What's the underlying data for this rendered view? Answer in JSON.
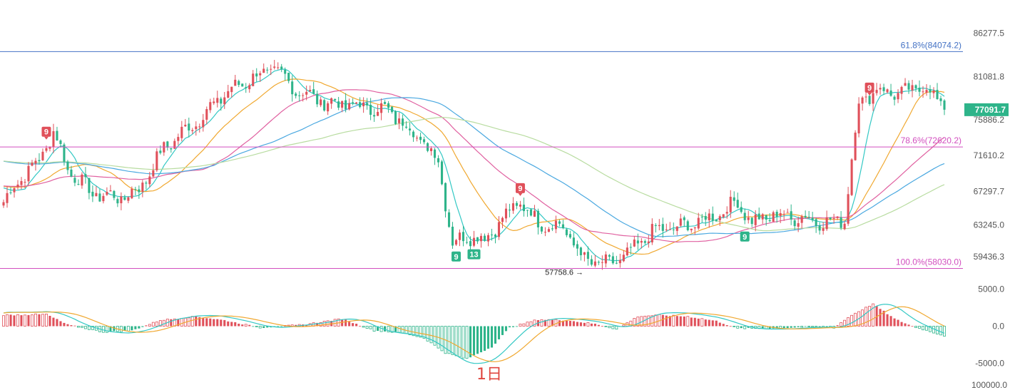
{
  "caption": "1日",
  "colors": {
    "up": "#e0505a",
    "down": "#2eb48a",
    "fib_618": "#4472c4",
    "fib_786": "#d24fbf",
    "fib_100": "#d24fbf",
    "ma_fast": "#33c8c4",
    "ma_mid": "#f0a830",
    "ma_slow": "#e060a0",
    "ma_slower": "#4aa8e0",
    "ma_slowest": "#b8dca0",
    "dif": "#33c8c4",
    "dea": "#f0a830",
    "price_tag": "#2eb48a"
  },
  "chart_data": [
    {
      "type": "candlestick",
      "price_axis_ticks": [
        "86277.5",
        "81081.8",
        "75886.2",
        "71610.2",
        "67297.7",
        "63245.0",
        "59436.3"
      ],
      "ylim": [
        57300,
        87700
      ],
      "last_price_tag": "77091.7",
      "fib_levels": [
        {
          "label": "61.8%(84074.2)",
          "value": 84074.2
        },
        {
          "label": "78.6%(72620.2)",
          "value": 72620.2
        },
        {
          "label": "100.0%(58030.0)",
          "value": 58030.0
        }
      ],
      "low_annotation": {
        "label": "57758.6 →",
        "value": 57758.6
      },
      "td_markers": [
        {
          "label": "9",
          "index": 12,
          "position": "above",
          "color": "up"
        },
        {
          "label": "9",
          "index": 127,
          "position": "below",
          "color": "down"
        },
        {
          "label": "13",
          "index": 132,
          "position": "below",
          "color": "down"
        },
        {
          "label": "9",
          "index": 145,
          "position": "above",
          "color": "up"
        },
        {
          "label": "9",
          "index": 208,
          "position": "below",
          "color": "down"
        },
        {
          "label": "9",
          "index": 243,
          "position": "above",
          "color": "up"
        }
      ],
      "anchors": [
        [
          0,
          66000
        ],
        [
          5,
          69000
        ],
        [
          10,
          71000
        ],
        [
          14,
          74500
        ],
        [
          18,
          70000
        ],
        [
          25,
          67000
        ],
        [
          33,
          66500
        ],
        [
          38,
          67500
        ],
        [
          45,
          72500
        ],
        [
          55,
          76000
        ],
        [
          62,
          79000
        ],
        [
          70,
          81000
        ],
        [
          76,
          82000
        ],
        [
          82,
          79500
        ],
        [
          90,
          78000
        ],
        [
          100,
          77500
        ],
        [
          108,
          77000
        ],
        [
          116,
          74000
        ],
        [
          122,
          71000
        ],
        [
          126,
          61000
        ],
        [
          130,
          62000
        ],
        [
          135,
          61500
        ],
        [
          140,
          64000
        ],
        [
          145,
          66000
        ],
        [
          150,
          63500
        ],
        [
          157,
          63000
        ],
        [
          163,
          59000
        ],
        [
          170,
          58500
        ],
        [
          176,
          60000
        ],
        [
          182,
          62500
        ],
        [
          190,
          63000
        ],
        [
          198,
          64000
        ],
        [
          206,
          66000
        ],
        [
          210,
          63500
        ],
        [
          216,
          64500
        ],
        [
          225,
          64000
        ],
        [
          232,
          63500
        ],
        [
          236,
          64000
        ],
        [
          240,
          78000
        ],
        [
          245,
          79500
        ],
        [
          252,
          79000
        ],
        [
          258,
          80000
        ],
        [
          264,
          77500
        ]
      ]
    },
    {
      "type": "macd",
      "axis_ticks": [
        "5000.0",
        "0.0",
        "-5000.0"
      ],
      "ylim": [
        -6000,
        6000
      ],
      "footer_value": "100000.0",
      "anchors": [
        [
          0,
          1500
        ],
        [
          12,
          1600
        ],
        [
          18,
          200
        ],
        [
          28,
          -800
        ],
        [
          36,
          -600
        ],
        [
          44,
          800
        ],
        [
          54,
          1300
        ],
        [
          62,
          800
        ],
        [
          72,
          -200
        ],
        [
          84,
          200
        ],
        [
          95,
          1000
        ],
        [
          104,
          -600
        ],
        [
          112,
          -900
        ],
        [
          118,
          -1600
        ],
        [
          124,
          -3600
        ],
        [
          130,
          -4400
        ],
        [
          137,
          -2800
        ],
        [
          142,
          -200
        ],
        [
          150,
          900
        ],
        [
          158,
          800
        ],
        [
          166,
          300
        ],
        [
          172,
          -400
        ],
        [
          178,
          1300
        ],
        [
          184,
          1500
        ],
        [
          192,
          1300
        ],
        [
          200,
          700
        ],
        [
          206,
          -300
        ],
        [
          216,
          -300
        ],
        [
          225,
          -100
        ],
        [
          233,
          -200
        ],
        [
          238,
          1500
        ],
        [
          244,
          3000
        ],
        [
          250,
          1000
        ],
        [
          255,
          0
        ],
        [
          264,
          -1300
        ]
      ]
    }
  ]
}
